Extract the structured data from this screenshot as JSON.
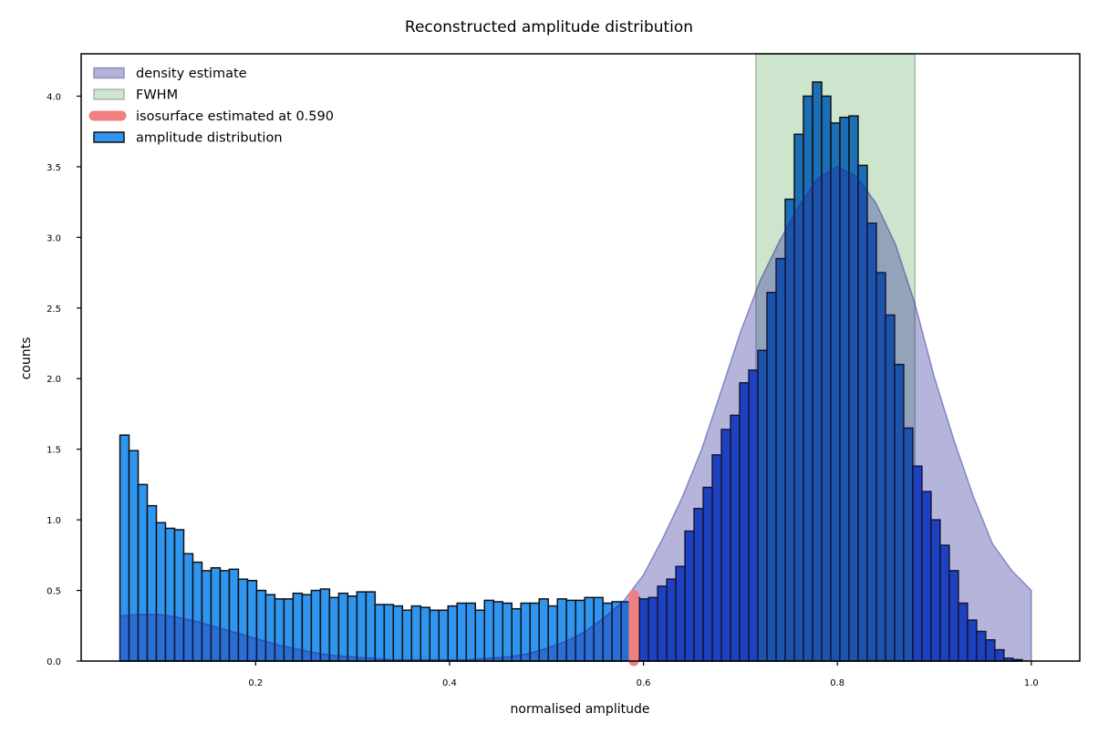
{
  "chart_data": {
    "type": "bar",
    "title": "Reconstructed amplitude distribution",
    "xlabel": "normalised amplitude",
    "ylabel": "counts",
    "xlim": [
      0.02,
      1.05
    ],
    "ylim": [
      0.0,
      4.3
    ],
    "xticks": [
      0.2,
      0.4,
      0.6,
      0.8,
      1.0
    ],
    "yticks": [
      0.0,
      0.5,
      1.0,
      1.5,
      2.0,
      2.5,
      3.0,
      3.5,
      4.0
    ],
    "grid": false,
    "legend_placement": "top-left",
    "legend": [
      {
        "label": "density estimate",
        "kind": "patch"
      },
      {
        "label": "FWHM",
        "kind": "patch"
      },
      {
        "label": "isosurface estimated at 0.590",
        "kind": "line"
      },
      {
        "label": "amplitude distribution",
        "kind": "patch"
      }
    ],
    "histogram": {
      "name": "amplitude distribution",
      "bin_start": 0.06,
      "bin_width": 0.0094,
      "counts": [
        1.6,
        1.49,
        1.25,
        1.1,
        0.98,
        0.94,
        0.93,
        0.76,
        0.7,
        0.64,
        0.66,
        0.64,
        0.65,
        0.58,
        0.57,
        0.5,
        0.47,
        0.44,
        0.44,
        0.48,
        0.47,
        0.5,
        0.51,
        0.45,
        0.48,
        0.46,
        0.49,
        0.49,
        0.4,
        0.4,
        0.39,
        0.36,
        0.39,
        0.38,
        0.36,
        0.36,
        0.39,
        0.41,
        0.41,
        0.36,
        0.43,
        0.42,
        0.41,
        0.37,
        0.41,
        0.41,
        0.44,
        0.39,
        0.44,
        0.43,
        0.43,
        0.45,
        0.45,
        0.41,
        0.42,
        0.42,
        0.45,
        0.44,
        0.45,
        0.53,
        0.58,
        0.67,
        0.92,
        1.08,
        1.23,
        1.46,
        1.64,
        1.74,
        1.97,
        2.06,
        2.2,
        2.61,
        2.85,
        3.27,
        3.73,
        4.0,
        4.1,
        4.0,
        3.81,
        3.85,
        3.86,
        3.51,
        3.1,
        2.75,
        2.45,
        2.1,
        1.65,
        1.38,
        1.2,
        1.0,
        0.82,
        0.64,
        0.41,
        0.29,
        0.21,
        0.15,
        0.08,
        0.02,
        0.01,
        0.0
      ],
      "color_low": "#2f95ee",
      "color_high": "#1f52d4",
      "color_fwhm": "#1b6fb6"
    },
    "density_estimate": {
      "name": "density estimate",
      "x": [
        0.06,
        0.08,
        0.1,
        0.12,
        0.14,
        0.16,
        0.18,
        0.2,
        0.22,
        0.24,
        0.26,
        0.28,
        0.3,
        0.32,
        0.34,
        0.36,
        0.38,
        0.4,
        0.42,
        0.44,
        0.46,
        0.48,
        0.5,
        0.52,
        0.54,
        0.56,
        0.58,
        0.6,
        0.62,
        0.64,
        0.66,
        0.68,
        0.7,
        0.72,
        0.74,
        0.76,
        0.78,
        0.8,
        0.82,
        0.84,
        0.86,
        0.88,
        0.9,
        0.92,
        0.94,
        0.96,
        0.98,
        1.0
      ],
      "y": [
        0.32,
        0.33,
        0.33,
        0.31,
        0.28,
        0.24,
        0.2,
        0.16,
        0.12,
        0.09,
        0.06,
        0.04,
        0.03,
        0.02,
        0.01,
        0.01,
        0.01,
        0.01,
        0.01,
        0.02,
        0.03,
        0.05,
        0.09,
        0.14,
        0.21,
        0.31,
        0.43,
        0.61,
        0.87,
        1.16,
        1.5,
        1.91,
        2.33,
        2.69,
        2.97,
        3.22,
        3.42,
        3.5,
        3.43,
        3.24,
        2.95,
        2.53,
        2.01,
        1.57,
        1.17,
        0.83,
        0.64,
        0.5
      ],
      "color": "#b3b3d9",
      "stroke": "#8f8fc4"
    },
    "fwhm": {
      "name": "FWHM",
      "x_start": 0.716,
      "x_end": 0.88,
      "color": "#cce5cc"
    },
    "isosurface": {
      "name": "isosurface estimated at 0.590",
      "x": 0.59,
      "y_top": 0.47,
      "color": "#f08080"
    }
  }
}
